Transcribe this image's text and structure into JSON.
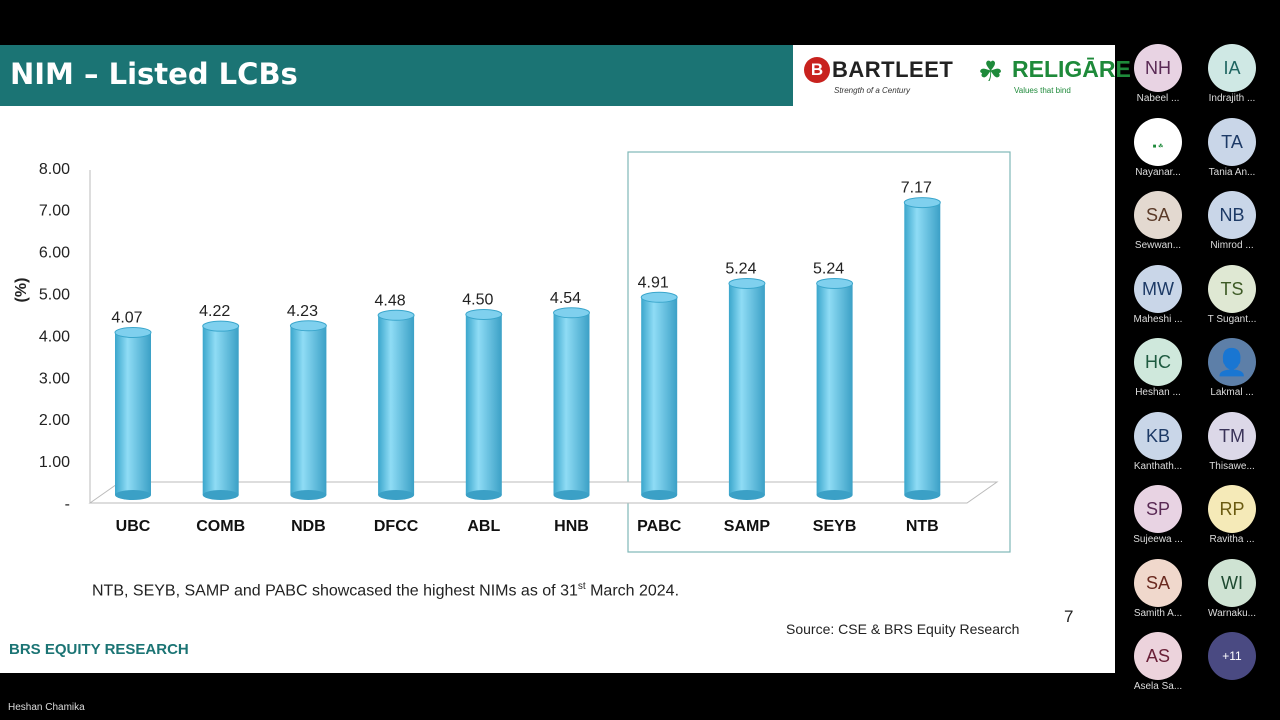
{
  "slide": {
    "title": "NIM – Listed LCBs",
    "logos": {
      "bartleet": "BARTLEET",
      "bartleet_tagline": "Strength of a Century",
      "religare": "RELIGĀRE",
      "religare_tagline": "Values that bind"
    },
    "caption_pre": "NTB, SEYB, SAMP and PABC showcased the highest NIMs as of 31",
    "caption_sup": "st",
    "caption_post": " March 2024.",
    "source": "Source: CSE & BRS Equity Research",
    "page_number": "7",
    "brand": "BRS EQUITY RESEARCH"
  },
  "chart_data": {
    "type": "bar",
    "style": "3d-cylinder",
    "categories": [
      "UBC",
      "COMB",
      "NDB",
      "DFCC",
      "ABL",
      "HNB",
      "PABC",
      "SAMP",
      "SEYB",
      "NTB"
    ],
    "values": [
      4.07,
      4.22,
      4.23,
      4.48,
      4.5,
      4.54,
      4.91,
      5.24,
      5.24,
      7.17
    ],
    "data_labels": [
      "4.07",
      "4.22",
      "4.23",
      "4.48",
      "4.50",
      "4.54",
      "4.91",
      "5.24",
      "5.24",
      "7.17"
    ],
    "ylabel": "(%)",
    "ylim": [
      0,
      8
    ],
    "yticks": [
      "-",
      "1.00",
      "2.00",
      "3.00",
      "4.00",
      "5.00",
      "6.00",
      "7.00",
      "8.00"
    ],
    "highlighted": [
      "PABC",
      "SAMP",
      "SEYB",
      "NTB"
    ],
    "bar_color": "#5bc3e6",
    "grid": false
  },
  "presenter": "Heshan Chamika",
  "participants": [
    {
      "initials": "NH",
      "name": "Nabeel ...",
      "bg": "#e8d3e3",
      "fg": "#5a2a55"
    },
    {
      "initials": "IA",
      "name": "Indrajith ...",
      "bg": "#cfe8e4",
      "fg": "#1e6460"
    },
    {
      "initials": "",
      "name": "Nayanar...",
      "bg": "#ffffff",
      "fg": "#333"
    },
    {
      "initials": "TA",
      "name": "Tania An...",
      "bg": "#c9d6e8",
      "fg": "#1d3a66"
    },
    {
      "initials": "SA",
      "name": "Sewwan...",
      "bg": "#e3d9d0",
      "fg": "#5a3a28"
    },
    {
      "initials": "NB",
      "name": "Nimrod ...",
      "bg": "#c9d6e8",
      "fg": "#1d3a66"
    },
    {
      "initials": "MW",
      "name": "Maheshi ...",
      "bg": "#c9d6e8",
      "fg": "#1d3a66"
    },
    {
      "initials": "TS",
      "name": "T Sugant...",
      "bg": "#dfe8d3",
      "fg": "#3d5a25"
    },
    {
      "initials": "HC",
      "name": "Heshan ...",
      "bg": "#cfe8dc",
      "fg": "#1e5a40"
    },
    {
      "initials": "",
      "name": "Lakmal ...",
      "bg": "#5d7fa8",
      "fg": "#fff"
    },
    {
      "initials": "KB",
      "name": "Kanthath...",
      "bg": "#c9d6e8",
      "fg": "#1d3a66"
    },
    {
      "initials": "TM",
      "name": "Thisawe...",
      "bg": "#dcd8e8",
      "fg": "#3a3358"
    },
    {
      "initials": "SP",
      "name": "Sujeewa ...",
      "bg": "#e8d3e3",
      "fg": "#5a2a55"
    },
    {
      "initials": "RP",
      "name": "Ravitha ...",
      "bg": "#f5eab8",
      "fg": "#6a5a10"
    },
    {
      "initials": "SA",
      "name": "Samith A...",
      "bg": "#f0d8cc",
      "fg": "#6a2a20"
    },
    {
      "initials": "WI",
      "name": "Warnaku...",
      "bg": "#cfe3d3",
      "fg": "#1e4a30"
    },
    {
      "initials": "AS",
      "name": "Asela Sa...",
      "bg": "#ecd3dc",
      "fg": "#6a2038"
    },
    {
      "initials": "+11",
      "name": "",
      "bg": "#4a4a82",
      "fg": "#fff"
    }
  ]
}
